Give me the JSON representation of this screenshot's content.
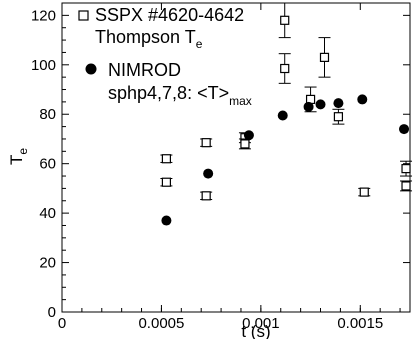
{
  "chart_data": {
    "type": "scatter",
    "title": "",
    "xlabel": "t (s)",
    "ylabel_main": "T",
    "ylabel_sub": "e",
    "xlim": [
      0,
      0.00175
    ],
    "ylim": [
      0,
      125
    ],
    "x_ticks": [
      {
        "value": 0,
        "label": "0"
      },
      {
        "value": 0.0005,
        "label": "0.0005"
      },
      {
        "value": 0.001,
        "label": "0.001"
      },
      {
        "value": 0.0015,
        "label": "0.0015"
      }
    ],
    "y_ticks": [
      {
        "value": 0,
        "label": "0"
      },
      {
        "value": 20,
        "label": "20"
      },
      {
        "value": 40,
        "label": "40"
      },
      {
        "value": 60,
        "label": "60"
      },
      {
        "value": 80,
        "label": "80"
      },
      {
        "value": 100,
        "label": "100"
      },
      {
        "value": 120,
        "label": "120"
      }
    ],
    "legend": {
      "placement": "top-left",
      "entries": [
        {
          "marker": "open-square",
          "line1": "SSPX  #4620-4642",
          "line2_main": "Thompson T",
          "line2_sub": "e"
        },
        {
          "marker": "filled-circle",
          "line1": "NIMROD",
          "line2_main": "sphp4,7,8: <T>",
          "line2_sub": "max"
        }
      ]
    },
    "series": [
      {
        "marker": "open-square",
        "error_bars": true,
        "points": [
          {
            "x": 0.000525,
            "y": 62,
            "err": 1.5
          },
          {
            "x": 0.000525,
            "y": 52.5,
            "err": 1.5
          },
          {
            "x": 0.000725,
            "y": 68.5,
            "err": 1.5
          },
          {
            "x": 0.000725,
            "y": 47,
            "err": 1.5
          },
          {
            "x": 0.00092,
            "y": 70.5,
            "err": 2
          },
          {
            "x": 0.00092,
            "y": 68,
            "err": 2
          },
          {
            "x": 0.00112,
            "y": 118,
            "err": 7
          },
          {
            "x": 0.00112,
            "y": 98.5,
            "err": 6
          },
          {
            "x": 0.00125,
            "y": 86,
            "err": 5
          },
          {
            "x": 0.00132,
            "y": 103,
            "err": 8
          },
          {
            "x": 0.00139,
            "y": 79,
            "err": 3
          },
          {
            "x": 0.00152,
            "y": 48.5,
            "err": 1.5
          },
          {
            "x": 0.00173,
            "y": 58,
            "err": 3
          },
          {
            "x": 0.00173,
            "y": 51,
            "err": 2
          }
        ]
      },
      {
        "marker": "filled-circle",
        "error_bars": false,
        "points": [
          {
            "x": 0.000525,
            "y": 37
          },
          {
            "x": 0.000735,
            "y": 56
          },
          {
            "x": 0.00094,
            "y": 71.5
          },
          {
            "x": 0.00111,
            "y": 79.5
          },
          {
            "x": 0.00124,
            "y": 83
          },
          {
            "x": 0.0013,
            "y": 84
          },
          {
            "x": 0.00139,
            "y": 84.5
          },
          {
            "x": 0.00151,
            "y": 86
          },
          {
            "x": 0.00172,
            "y": 74
          }
        ]
      }
    ]
  }
}
